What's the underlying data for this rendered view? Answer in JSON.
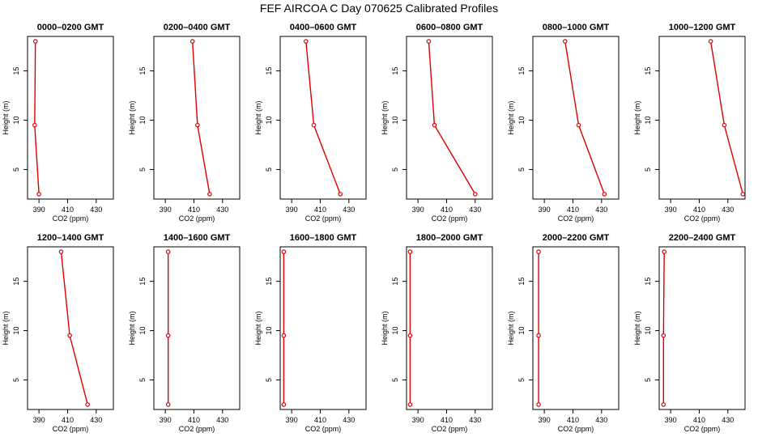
{
  "title": "FEF AIRCOA C  Day 070625  Calibrated Profiles",
  "chart_data": [
    {
      "type": "line",
      "title": "0000–0200 GMT",
      "xlabel": "CO2 (ppm)",
      "ylabel": "Height (m)",
      "xlim": [
        382,
        442
      ],
      "ylim": [
        2,
        18.5
      ],
      "xticks": [
        390,
        410,
        430
      ],
      "yticks": [
        5,
        10,
        15
      ],
      "x": [
        387.5,
        387.0,
        390.0
      ],
      "y": [
        18,
        9.5,
        2.5
      ]
    },
    {
      "type": "line",
      "title": "0200–0400 GMT",
      "xlabel": "CO2 (ppm)",
      "ylabel": "Height (m)",
      "xlim": [
        382,
        442
      ],
      "ylim": [
        2,
        18.5
      ],
      "xticks": [
        390,
        410,
        430
      ],
      "yticks": [
        5,
        10,
        15
      ],
      "x": [
        409.0,
        412.5,
        421.0
      ],
      "y": [
        18,
        9.5,
        2.5
      ]
    },
    {
      "type": "line",
      "title": "0400–0600 GMT",
      "xlabel": "CO2 (ppm)",
      "ylabel": "Height (m)",
      "xlim": [
        382,
        442
      ],
      "ylim": [
        2,
        18.5
      ],
      "xticks": [
        390,
        410,
        430
      ],
      "yticks": [
        5,
        10,
        15
      ],
      "x": [
        400.0,
        405.5,
        424.0
      ],
      "y": [
        18,
        9.5,
        2.5
      ]
    },
    {
      "type": "line",
      "title": "0600–0800 GMT",
      "xlabel": "CO2 (ppm)",
      "ylabel": "Height (m)",
      "xlim": [
        382,
        442
      ],
      "ylim": [
        2,
        18.5
      ],
      "xticks": [
        390,
        410,
        430
      ],
      "yticks": [
        5,
        10,
        15
      ],
      "x": [
        397.5,
        401.5,
        430.0
      ],
      "y": [
        18,
        9.5,
        2.5
      ]
    },
    {
      "type": "line",
      "title": "0800–1000 GMT",
      "xlabel": "CO2 (ppm)",
      "ylabel": "Height (m)",
      "xlim": [
        382,
        442
      ],
      "ylim": [
        2,
        18.5
      ],
      "xticks": [
        390,
        410,
        430
      ],
      "yticks": [
        5,
        10,
        15
      ],
      "x": [
        404.5,
        414.0,
        432.0
      ],
      "y": [
        18,
        9.5,
        2.5
      ]
    },
    {
      "type": "line",
      "title": "1000–1200 GMT",
      "xlabel": "CO2 (ppm)",
      "ylabel": "Height (m)",
      "xlim": [
        382,
        442
      ],
      "ylim": [
        2,
        18.5
      ],
      "xticks": [
        390,
        410,
        430
      ],
      "yticks": [
        5,
        10,
        15
      ],
      "x": [
        418.0,
        427.5,
        440.5
      ],
      "y": [
        18,
        9.5,
        2.5
      ]
    },
    {
      "type": "line",
      "title": "1200–1400 GMT",
      "xlabel": "CO2 (ppm)",
      "ylabel": "Height (m)",
      "xlim": [
        382,
        442
      ],
      "ylim": [
        2,
        18.5
      ],
      "xticks": [
        390,
        410,
        430
      ],
      "yticks": [
        5,
        10,
        15
      ],
      "x": [
        405.5,
        411.5,
        424.0
      ],
      "y": [
        18,
        9.5,
        2.5
      ]
    },
    {
      "type": "line",
      "title": "1400–1600 GMT",
      "xlabel": "CO2 (ppm)",
      "ylabel": "Height (m)",
      "xlim": [
        382,
        442
      ],
      "ylim": [
        2,
        18.5
      ],
      "xticks": [
        390,
        410,
        430
      ],
      "yticks": [
        5,
        10,
        15
      ],
      "x": [
        392.0,
        392.0,
        392.0
      ],
      "y": [
        18,
        9.5,
        2.5
      ]
    },
    {
      "type": "line",
      "title": "1600–1800 GMT",
      "xlabel": "CO2 (ppm)",
      "ylabel": "Height (m)",
      "xlim": [
        382,
        442
      ],
      "ylim": [
        2,
        18.5
      ],
      "xticks": [
        390,
        410,
        430
      ],
      "yticks": [
        5,
        10,
        15
      ],
      "x": [
        384.5,
        384.5,
        384.5
      ],
      "y": [
        18,
        9.5,
        2.5
      ]
    },
    {
      "type": "line",
      "title": "1800–2000 GMT",
      "xlabel": "CO2 (ppm)",
      "ylabel": "Height (m)",
      "xlim": [
        382,
        442
      ],
      "ylim": [
        2,
        18.5
      ],
      "xticks": [
        390,
        410,
        430
      ],
      "yticks": [
        5,
        10,
        15
      ],
      "x": [
        384.5,
        384.5,
        384.5
      ],
      "y": [
        18,
        9.5,
        2.5
      ]
    },
    {
      "type": "line",
      "title": "2000–2200 GMT",
      "xlabel": "CO2 (ppm)",
      "ylabel": "Height (m)",
      "xlim": [
        382,
        442
      ],
      "ylim": [
        2,
        18.5
      ],
      "xticks": [
        390,
        410,
        430
      ],
      "yticks": [
        5,
        10,
        15
      ],
      "x": [
        386.0,
        386.0,
        386.0
      ],
      "y": [
        18,
        9.5,
        2.5
      ]
    },
    {
      "type": "line",
      "title": "2200–2400 GMT",
      "xlabel": "CO2 (ppm)",
      "ylabel": "Height (m)",
      "xlim": [
        382,
        442
      ],
      "ylim": [
        2,
        18.5
      ],
      "xticks": [
        390,
        410,
        430
      ],
      "yticks": [
        5,
        10,
        15
      ],
      "x": [
        385.5,
        385.0,
        385.0
      ],
      "y": [
        18,
        9.5,
        2.5
      ]
    }
  ],
  "colors": {
    "series": "#dd0000",
    "axis": "#000000"
  }
}
